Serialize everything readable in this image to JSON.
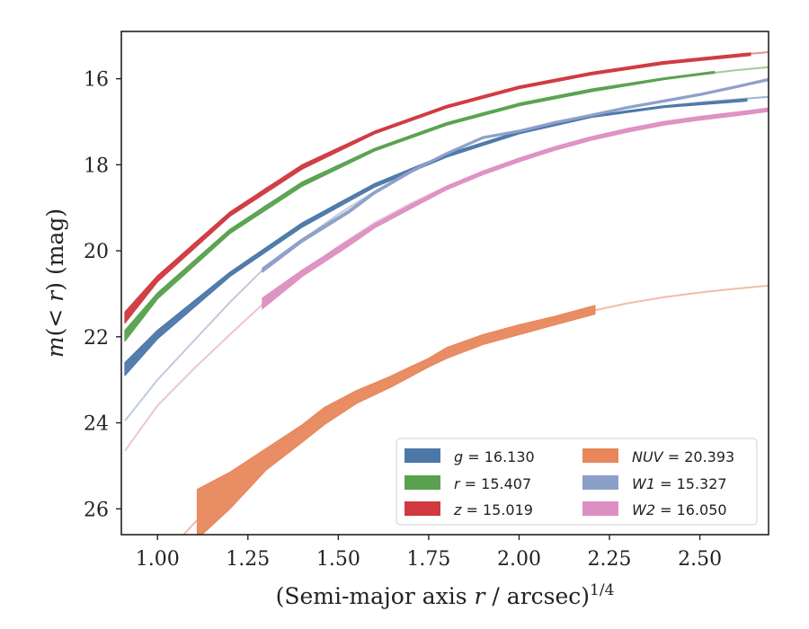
{
  "chart_data": {
    "type": "line",
    "xlabel": "(Semi-major axis r / arcsec)",
    "xlabel_parts": {
      "prefix": "(Semi-major axis ",
      "var": "r",
      "suffix": " / arcsec)",
      "power": "1/4"
    },
    "ylabel": "m(< r) (mag)",
    "ylabel_parts": {
      "m": "m",
      "open": "(",
      "lt": "< ",
      "r": "r",
      "close": ")",
      "unit": " (mag)"
    },
    "xlim": [
      0.9,
      2.69
    ],
    "ylim": [
      26.6,
      14.9
    ],
    "y_inverted": true,
    "x_ticks": [
      1.0,
      1.25,
      1.5,
      1.75,
      2.0,
      2.25,
      2.5
    ],
    "x_tick_labels": [
      "1.00",
      "1.25",
      "1.50",
      "1.75",
      "2.00",
      "2.25",
      "2.50"
    ],
    "y_ticks": [
      16,
      18,
      20,
      22,
      24,
      26
    ],
    "y_tick_labels": [
      "16",
      "18",
      "20",
      "22",
      "24",
      "26"
    ],
    "grid": false,
    "legend_position": "lower-right",
    "series": [
      {
        "name": "g",
        "total": "16.130",
        "color": "#4c78a8",
        "model_x": [
          0.91,
          1.0,
          1.1,
          1.2,
          1.3,
          1.4,
          1.5,
          1.6,
          1.7,
          1.8,
          1.9,
          2.0,
          2.1,
          2.2,
          2.3,
          2.4,
          2.5,
          2.6,
          2.69
        ],
        "model_y": [
          22.75,
          21.95,
          21.2,
          20.55,
          19.95,
          19.4,
          18.9,
          18.48,
          18.1,
          17.78,
          17.5,
          17.25,
          17.05,
          16.88,
          16.75,
          16.64,
          16.55,
          16.48,
          16.42
        ],
        "band_x": [
          0.91,
          1.0,
          1.2,
          1.4,
          1.6,
          1.8,
          2.0,
          2.2,
          2.4,
          2.63
        ],
        "band_lo": [
          22.6,
          21.85,
          20.5,
          19.35,
          18.44,
          17.75,
          17.22,
          16.86,
          16.63,
          16.47
        ],
        "band_hi": [
          22.9,
          22.05,
          20.6,
          19.45,
          18.52,
          17.82,
          17.28,
          16.9,
          16.67,
          16.52
        ]
      },
      {
        "name": "r",
        "total": "15.407",
        "color": "#59a14f",
        "model_x": [
          0.91,
          1.0,
          1.1,
          1.2,
          1.3,
          1.4,
          1.5,
          1.6,
          1.7,
          1.8,
          1.9,
          2.0,
          2.1,
          2.2,
          2.3,
          2.4,
          2.5,
          2.6,
          2.69
        ],
        "model_y": [
          21.95,
          21.05,
          20.25,
          19.55,
          18.95,
          18.45,
          18.02,
          17.65,
          17.33,
          17.05,
          16.8,
          16.6,
          16.42,
          16.27,
          16.13,
          16.0,
          15.9,
          15.8,
          15.73
        ],
        "band_x": [
          0.91,
          1.0,
          1.2,
          1.4,
          1.6,
          1.8,
          2.0,
          2.2,
          2.4,
          2.54
        ],
        "band_lo": [
          21.85,
          20.98,
          19.5,
          18.4,
          17.62,
          17.02,
          16.57,
          16.24,
          15.98,
          15.83
        ],
        "band_hi": [
          22.1,
          21.12,
          19.6,
          18.5,
          17.68,
          17.08,
          16.63,
          16.3,
          16.02,
          15.87
        ]
      },
      {
        "name": "z",
        "total": "15.019",
        "color": "#d0393f",
        "model_x": [
          0.91,
          1.0,
          1.1,
          1.2,
          1.3,
          1.4,
          1.5,
          1.6,
          1.7,
          1.8,
          1.9,
          2.0,
          2.1,
          2.2,
          2.3,
          2.4,
          2.5,
          2.6,
          2.69
        ],
        "model_y": [
          21.55,
          20.65,
          19.85,
          19.15,
          18.55,
          18.05,
          17.62,
          17.25,
          16.93,
          16.65,
          16.4,
          16.2,
          16.03,
          15.88,
          15.75,
          15.63,
          15.53,
          15.45,
          15.38
        ],
        "band_x": [
          0.91,
          1.0,
          1.2,
          1.4,
          1.6,
          1.8,
          2.0,
          2.2,
          2.4,
          2.64
        ],
        "band_lo": [
          21.42,
          20.58,
          19.1,
          18.0,
          17.22,
          16.62,
          16.17,
          15.85,
          15.6,
          15.4
        ],
        "band_hi": [
          21.68,
          20.72,
          19.2,
          18.1,
          17.28,
          16.68,
          16.23,
          15.91,
          15.66,
          15.46
        ]
      },
      {
        "name": "NUV",
        "total": "20.393",
        "color": "#e8875c",
        "model_x": [
          1.05,
          1.1,
          1.2,
          1.3,
          1.4,
          1.5,
          1.6,
          1.7,
          1.8,
          1.9,
          2.0,
          2.1,
          2.2,
          2.3,
          2.4,
          2.5,
          2.6,
          2.69
        ],
        "model_y": [
          26.8,
          26.35,
          25.5,
          24.75,
          24.1,
          23.55,
          23.1,
          22.7,
          22.35,
          22.05,
          21.8,
          21.6,
          21.4,
          21.22,
          21.08,
          20.97,
          20.88,
          20.81
        ],
        "band_x": [
          1.11,
          1.2,
          1.3,
          1.4,
          1.46,
          1.55,
          1.65,
          1.75,
          1.8,
          1.9,
          2.0,
          2.1,
          2.21
        ],
        "band_lo": [
          25.55,
          25.15,
          24.6,
          24.05,
          23.65,
          23.25,
          22.9,
          22.5,
          22.25,
          21.95,
          21.72,
          21.52,
          21.27
        ],
        "band_hi": [
          26.7,
          26.0,
          25.1,
          24.45,
          24.05,
          23.55,
          23.15,
          22.7,
          22.5,
          22.18,
          21.95,
          21.72,
          21.47
        ]
      },
      {
        "name": "W1",
        "total": "15.327",
        "color": "#8c9fc8",
        "model_x": [
          0.91,
          1.0,
          1.1,
          1.2,
          1.29,
          1.4,
          1.5,
          1.6,
          1.7,
          1.8,
          1.9,
          2.0,
          2.1,
          2.2,
          2.3,
          2.4,
          2.5,
          2.6,
          2.69
        ],
        "model_y": [
          23.95,
          23.0,
          22.1,
          21.2,
          20.45,
          19.75,
          19.15,
          18.62,
          18.15,
          17.72,
          17.35,
          17.2,
          17.0,
          16.83,
          16.65,
          16.5,
          16.35,
          16.17,
          16.0
        ],
        "band_x": [
          1.29,
          1.4,
          1.53,
          1.6,
          1.7,
          1.8,
          1.9,
          2.0,
          2.1,
          2.2,
          2.3,
          2.4,
          2.5,
          2.6,
          2.69
        ],
        "band_lo": [
          20.4,
          19.72,
          19.05,
          18.62,
          18.13,
          17.72,
          17.35,
          17.2,
          17.0,
          16.83,
          16.65,
          16.5,
          16.35,
          16.17,
          16.0
        ],
        "band_hi": [
          20.5,
          19.8,
          19.12,
          18.68,
          18.19,
          17.76,
          17.39,
          17.24,
          17.04,
          16.87,
          16.69,
          16.54,
          16.39,
          16.21,
          16.04
        ]
      },
      {
        "name": "W2",
        "total": "16.050",
        "color": "#dd8fc1",
        "model_x": [
          0.91,
          1.0,
          1.1,
          1.2,
          1.29,
          1.4,
          1.5,
          1.6,
          1.7,
          1.8,
          1.9,
          2.0,
          2.1,
          2.2,
          2.3,
          2.4,
          2.5,
          2.6,
          2.69
        ],
        "model_y": [
          24.65,
          23.6,
          22.75,
          21.95,
          21.25,
          20.5,
          19.9,
          19.35,
          18.9,
          18.5,
          18.15,
          17.85,
          17.58,
          17.35,
          17.16,
          17.0,
          16.88,
          16.78,
          16.7
        ],
        "band_x": [
          1.29,
          1.4,
          1.53,
          1.6,
          1.7,
          1.8,
          1.9,
          2.0,
          2.1,
          2.2,
          2.3,
          2.4,
          2.5,
          2.6,
          2.69
        ],
        "band_lo": [
          21.1,
          20.45,
          19.75,
          19.38,
          18.93,
          18.5,
          18.15,
          17.85,
          17.58,
          17.35,
          17.16,
          17.0,
          16.88,
          16.78,
          16.68
        ],
        "band_hi": [
          21.35,
          20.6,
          19.88,
          19.47,
          19.02,
          18.58,
          18.23,
          17.93,
          17.66,
          17.43,
          17.24,
          17.08,
          16.96,
          16.86,
          16.76
        ]
      }
    ],
    "legend": [
      {
        "label": "g",
        "eq": " = 16.130",
        "color": "#4c78a8"
      },
      {
        "label": "r",
        "eq": " = 15.407",
        "color": "#59a14f"
      },
      {
        "label": "z",
        "eq": " = 15.019",
        "color": "#d0393f"
      },
      {
        "label": "NUV",
        "eq": " = 20.393",
        "color": "#e8875c"
      },
      {
        "label": "W1",
        "eq": " = 15.327",
        "color": "#8c9fc8"
      },
      {
        "label": "W2",
        "eq": " = 16.050",
        "color": "#dd8fc1"
      }
    ]
  }
}
